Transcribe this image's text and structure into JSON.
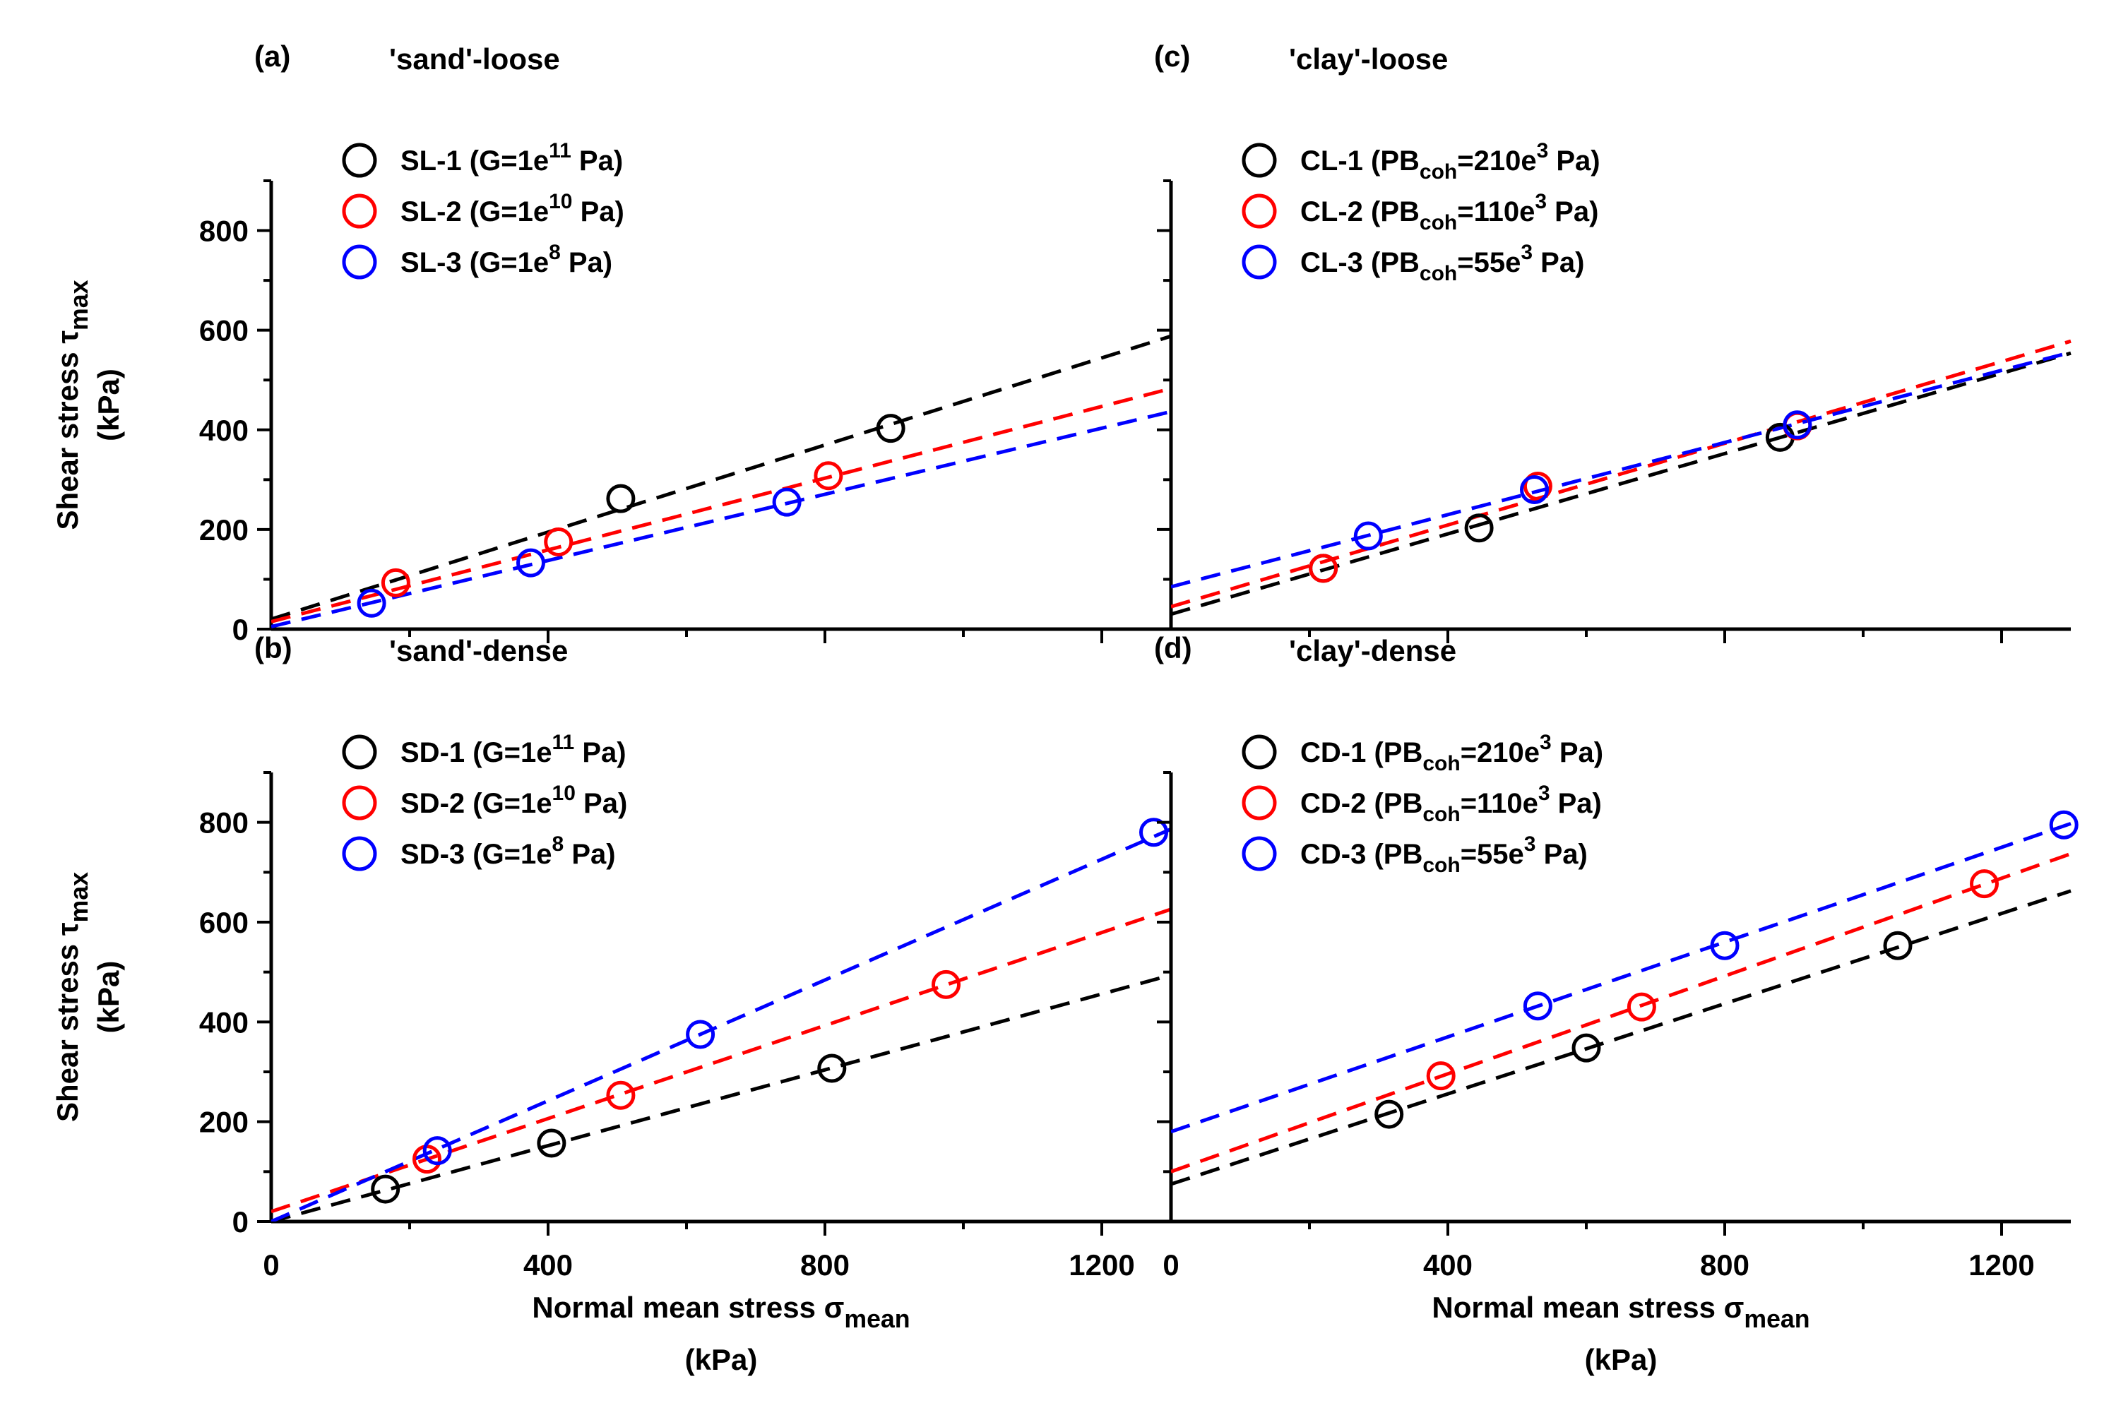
{
  "colors": {
    "SL-1": "#000000",
    "SL-2": "#ff0000",
    "SL-3": "#0000ff"
  },
  "chart_data": [
    {
      "panel": "(a)",
      "title": "'sand'-loose",
      "type": "scatter",
      "xlabel": "",
      "xlabel_main": "",
      "xlabel_sub": "",
      "xlabel_unit": "",
      "ylabel_main": "Shear stress τ",
      "ylabel_sub": "max",
      "ylabel_unit": "(kPa)",
      "xlim": [
        0,
        1300
      ],
      "ylim": [
        0,
        900
      ],
      "xticks": [
        0,
        400,
        800,
        1200
      ],
      "yticks": [
        0,
        200,
        400,
        600,
        800
      ],
      "show_xtick_labels": false,
      "show_ytick_labels": true,
      "legend_position": "top-left",
      "series": [
        {
          "name": "SL-1 (G=1e11 Pa)",
          "legend_main": "SL-1 (G=1e",
          "legend_sup": "11",
          "legend_tail": " Pa)",
          "color": "#000000",
          "x": [
            505,
            895
          ],
          "y": [
            262,
            403
          ],
          "fit": {
            "intercept": 20,
            "slope": 0.437
          }
        },
        {
          "name": "SL-2 (G=1e10 Pa)",
          "legend_main": "SL-2 (G=1e",
          "legend_sup": "10",
          "legend_tail": " Pa)",
          "color": "#ff0000",
          "x": [
            180,
            415,
            805
          ],
          "y": [
            93,
            175,
            308
          ],
          "fit": {
            "intercept": 15,
            "slope": 0.36
          }
        },
        {
          "name": "SL-3 (G=1e8 Pa)",
          "legend_main": "SL-3 (G=1e",
          "legend_sup": "8",
          "legend_tail": " Pa)",
          "color": "#0000ff",
          "x": [
            145,
            375,
            745
          ],
          "y": [
            52,
            133,
            255
          ],
          "fit": {
            "intercept": 5,
            "slope": 0.332
          }
        }
      ]
    },
    {
      "panel": "(b)",
      "title": "'sand'-dense",
      "type": "scatter",
      "xlabel_main": "Normal mean stress σ",
      "xlabel_sub": "mean",
      "xlabel_unit": "(kPa)",
      "ylabel_main": "Shear stress τ",
      "ylabel_sub": "max",
      "ylabel_unit": "(kPa)",
      "xlim": [
        0,
        1300
      ],
      "ylim": [
        0,
        900
      ],
      "xticks": [
        0,
        400,
        800,
        1200
      ],
      "yticks": [
        0,
        200,
        400,
        600,
        800
      ],
      "show_xtick_labels": true,
      "show_ytick_labels": true,
      "legend_position": "top-left",
      "series": [
        {
          "name": "SD-1 (G=1e11 Pa)",
          "legend_main": "SD-1 (G=1e",
          "legend_sup": "11",
          "legend_tail": " Pa)",
          "color": "#000000",
          "x": [
            165,
            405,
            810
          ],
          "y": [
            65,
            157,
            307
          ],
          "fit": {
            "intercept": 0,
            "slope": 0.38
          }
        },
        {
          "name": "SD-2 (G=1e10 Pa)",
          "legend_main": "SD-2 (G=1e",
          "legend_sup": "10",
          "legend_tail": " Pa)",
          "color": "#ff0000",
          "x": [
            225,
            505,
            975
          ],
          "y": [
            125,
            253,
            475
          ],
          "fit": {
            "intercept": 20,
            "slope": 0.466
          }
        },
        {
          "name": "SD-3 (G=1e8 Pa)",
          "legend_main": "SD-3 (G=1e",
          "legend_sup": "8",
          "legend_tail": " Pa)",
          "color": "#0000ff",
          "x": [
            240,
            620,
            1275
          ],
          "y": [
            142,
            375,
            780
          ],
          "fit": {
            "intercept": 0,
            "slope": 0.605
          }
        }
      ]
    },
    {
      "panel": "(c)",
      "title": "'clay'-loose",
      "type": "scatter",
      "xlabel_main": "",
      "xlabel_sub": "",
      "xlabel_unit": "",
      "ylabel_main": "",
      "ylabel_sub": "",
      "ylabel_unit": "",
      "xlim": [
        0,
        1300
      ],
      "ylim": [
        0,
        900
      ],
      "xticks": [
        0,
        400,
        800,
        1200
      ],
      "yticks": [
        0,
        200,
        400,
        600,
        800
      ],
      "show_xtick_labels": false,
      "show_ytick_labels": false,
      "legend_position": "top-left",
      "series": [
        {
          "name": "CL-1 (PBcoh=210e3 Pa)",
          "legend_main": "CL-1 (PB",
          "legend_sub": "coh",
          "legend_mid": "=210e",
          "legend_sup": "3",
          "legend_tail": " Pa)",
          "color": "#000000",
          "x": [
            220,
            445,
            880
          ],
          "y": [
            122,
            203,
            385
          ],
          "fit": {
            "intercept": 30,
            "slope": 0.403
          }
        },
        {
          "name": "CL-2 (PBcoh=110e3 Pa)",
          "legend_main": "CL-2 (PB",
          "legend_sub": "coh",
          "legend_mid": "=110e",
          "legend_sup": "3",
          "legend_tail": " Pa)",
          "color": "#ff0000",
          "x": [
            220,
            530,
            905
          ],
          "y": [
            122,
            287,
            408
          ],
          "fit": {
            "intercept": 45,
            "slope": 0.41
          }
        },
        {
          "name": "CL-3 (PBcoh=55e3 Pa)",
          "legend_main": "CL-3 (PB",
          "legend_sub": "coh",
          "legend_mid": "=55e",
          "legend_sup": "3",
          "legend_tail": " Pa)",
          "color": "#0000ff",
          "x": [
            285,
            525,
            905
          ],
          "y": [
            187,
            280,
            410
          ],
          "fit": {
            "intercept": 85,
            "slope": 0.362
          }
        }
      ]
    },
    {
      "panel": "(d)",
      "title": "'clay'-dense",
      "type": "scatter",
      "xlabel_main": "Normal mean stress σ",
      "xlabel_sub": "mean",
      "xlabel_unit": "(kPa)",
      "ylabel_main": "",
      "ylabel_sub": "",
      "ylabel_unit": "",
      "xlim": [
        0,
        1300
      ],
      "ylim": [
        0,
        900
      ],
      "xticks": [
        0,
        400,
        800,
        1200
      ],
      "yticks": [
        0,
        200,
        400,
        600,
        800
      ],
      "show_xtick_labels": true,
      "show_ytick_labels": false,
      "legend_position": "top-left",
      "series": [
        {
          "name": "CD-1 (PBcoh=210e3 Pa)",
          "legend_main": "CD-1 (PB",
          "legend_sub": "coh",
          "legend_mid": "=210e",
          "legend_sup": "3",
          "legend_tail": " Pa)",
          "color": "#000000",
          "x": [
            315,
            600,
            1050
          ],
          "y": [
            215,
            348,
            553
          ],
          "fit": {
            "intercept": 75,
            "slope": 0.452
          }
        },
        {
          "name": "CD-2 (PBcoh=110e3 Pa)",
          "legend_main": "CD-2 (PB",
          "legend_sub": "coh",
          "legend_mid": "=110e",
          "legend_sup": "3",
          "legend_tail": " Pa)",
          "color": "#ff0000",
          "x": [
            390,
            680,
            1175
          ],
          "y": [
            292,
            430,
            677
          ],
          "fit": {
            "intercept": 100,
            "slope": 0.49
          }
        },
        {
          "name": "CD-3 (PBcoh=55e3 Pa)",
          "legend_main": "CD-3 (PB",
          "legend_sub": "coh",
          "legend_mid": "=55e",
          "legend_sup": "3",
          "legend_tail": " Pa)",
          "color": "#0000ff",
          "x": [
            530,
            800,
            1290
          ],
          "y": [
            432,
            553,
            795
          ],
          "fit": {
            "intercept": 180,
            "slope": 0.475
          }
        }
      ]
    }
  ]
}
